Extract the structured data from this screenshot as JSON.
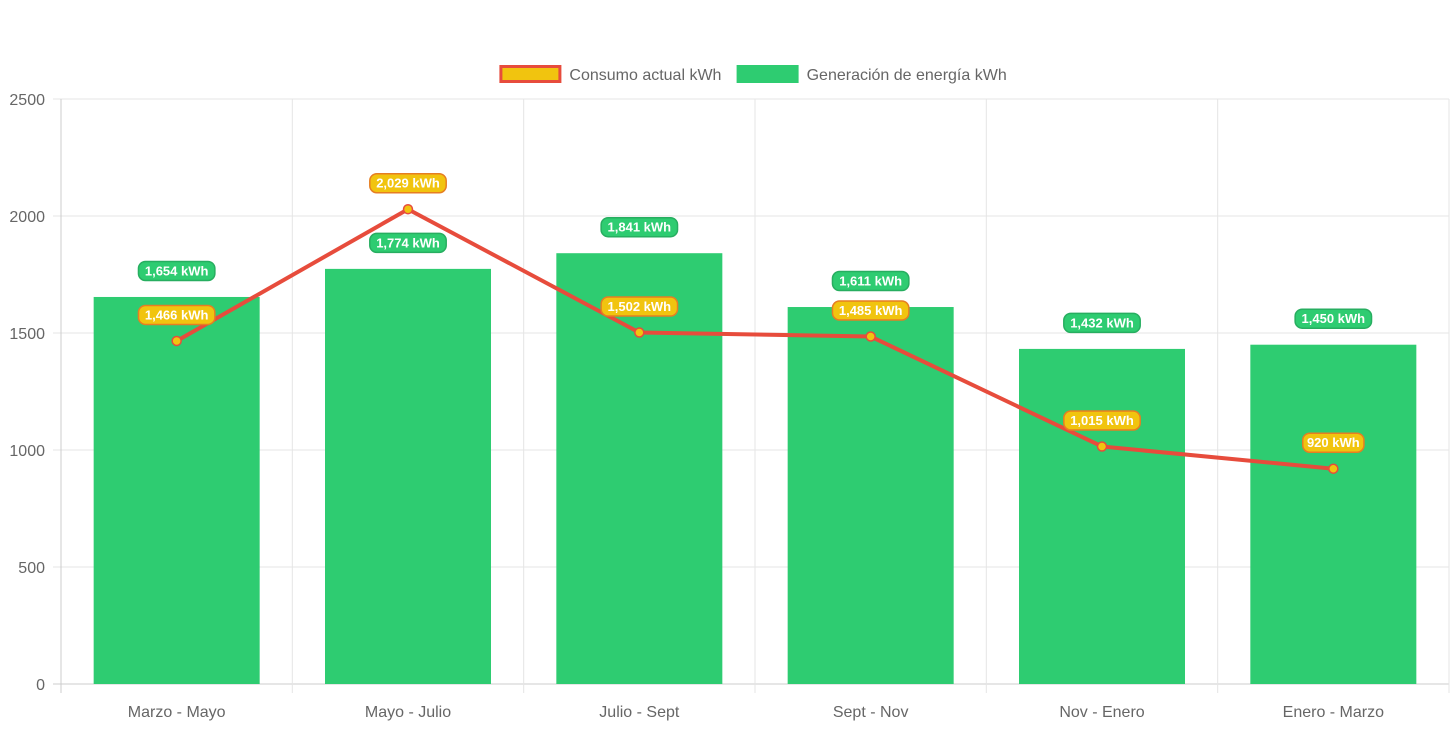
{
  "chart_data": {
    "type": "bar",
    "categories": [
      "Marzo - Mayo",
      "Mayo - Julio",
      "Julio - Sept",
      "Sept - Nov",
      "Nov - Enero",
      "Enero - Marzo"
    ],
    "series": [
      {
        "name": "Generación de energía kWh",
        "type": "bar",
        "values": [
          1654,
          1774,
          1841,
          1611,
          1432,
          1450
        ],
        "labels": [
          "1,654 kWh",
          "1,774 kWh",
          "1,841 kWh",
          "1,611 kWh",
          "1,432 kWh",
          "1,450 kWh"
        ],
        "color": "#2ecc71"
      },
      {
        "name": "Consumo actual kWh",
        "type": "line",
        "values": [
          1466,
          2029,
          1502,
          1485,
          1015,
          920
        ],
        "labels": [
          "1,466 kWh",
          "2,029 kWh",
          "1,502 kWh",
          "1,485 kWh",
          "1,015 kWh",
          "920 kWh"
        ],
        "color": "#e74c3c",
        "fill_color": "#f1c40f"
      }
    ],
    "legend": {
      "position": "top",
      "items": [
        "Consumo actual kWh",
        "Generación de energía kWh"
      ]
    },
    "y_ticks": [
      "0",
      "500",
      "1000",
      "1500",
      "2000",
      "2500"
    ],
    "ylim": [
      0,
      2500
    ],
    "grid": true,
    "colors": {
      "grid": "#e5e5e5",
      "axis": "#cccccc",
      "text": "#666666"
    }
  }
}
